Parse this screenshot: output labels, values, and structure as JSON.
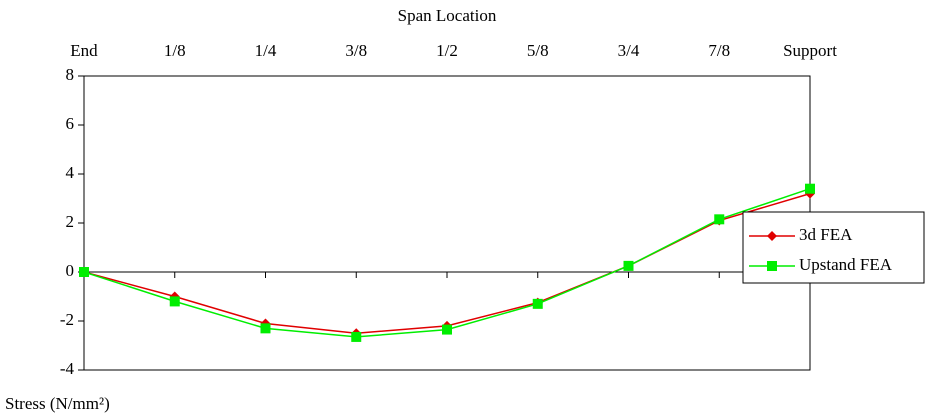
{
  "chart_data": {
    "type": "line",
    "x_label": "Span Location",
    "y_label": "Stress (N/mm²)",
    "categories": [
      "End",
      "1/8",
      "1/4",
      "3/8",
      "1/2",
      "5/8",
      "3/4",
      "7/8",
      "Support"
    ],
    "series": [
      {
        "name": "3d FEA",
        "color": "#e00000",
        "marker": "diamond",
        "values": [
          0,
          -1.0,
          -2.1,
          -2.5,
          -2.2,
          -1.25,
          0.25,
          2.1,
          3.2
        ]
      },
      {
        "name": "Upstand FEA",
        "color": "#00ee00",
        "marker": "square",
        "values": [
          0,
          -1.2,
          -2.3,
          -2.65,
          -2.35,
          -1.3,
          0.25,
          2.15,
          3.4
        ]
      }
    ],
    "ylim": [
      -4,
      8
    ],
    "yticks": [
      -4,
      -2,
      0,
      2,
      4,
      6,
      8
    ],
    "legend": "right"
  }
}
